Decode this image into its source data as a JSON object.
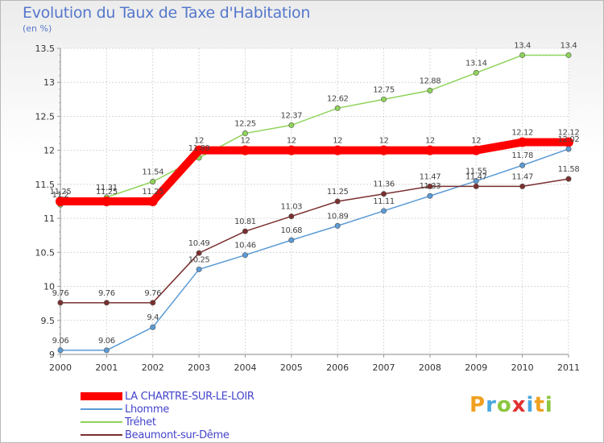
{
  "header": {
    "title": "Evolution du Taux de Taxe d'Habitation",
    "subtitle": "(en %)"
  },
  "brand": {
    "text": "Proxiti",
    "letters": [
      {
        "ch": "P",
        "color": "#f0a020"
      },
      {
        "ch": "r",
        "color": "#4aa8e0"
      },
      {
        "ch": "o",
        "color": "#8cc63f"
      },
      {
        "ch": "x",
        "color": "#e03030"
      },
      {
        "ch": "i",
        "color": "#4aa8e0"
      },
      {
        "ch": "t",
        "color": "#f0a020"
      },
      {
        "ch": "i",
        "color": "#8cc63f"
      }
    ]
  },
  "chart_data": {
    "type": "line",
    "title": "Evolution du Taux de Taxe d'Habitation",
    "subtitle": "(en %)",
    "x": [
      "2000",
      "2001",
      "2002",
      "2003",
      "2004",
      "2005",
      "2006",
      "2007",
      "2008",
      "2009",
      "2010",
      "2011"
    ],
    "ylim": [
      9,
      13.5
    ],
    "yticks": [
      "9",
      "9.5",
      "10",
      "10.5",
      "11",
      "11.5",
      "12",
      "12.5",
      "13",
      "13.5"
    ],
    "grid": "horizontal",
    "legend_position": "bottom-left",
    "series": [
      {
        "name": "LA CHARTRE-SUR-LE-LOIR",
        "color": "#ff0000",
        "values": [
          11.25,
          11.25,
          11.25,
          12,
          12,
          12,
          12,
          12,
          12,
          12,
          12.12,
          12.12
        ],
        "labels": [
          "11.25",
          "11.25",
          "11.25",
          "12",
          "12",
          "12",
          "12",
          "12",
          "12",
          "12",
          "12.12",
          "12.12"
        ]
      },
      {
        "name": "Lhomme",
        "color": "#5b9bd5",
        "values": [
          9.06,
          9.06,
          9.4,
          10.25,
          10.46,
          10.68,
          10.89,
          11.11,
          11.33,
          11.55,
          11.78,
          12.02
        ],
        "labels": [
          "9.06",
          "9.06",
          "9.4",
          "10.25",
          "10.46",
          "10.68",
          "10.89",
          "11.11",
          "11.33",
          "11.55",
          "11.78",
          "12.02"
        ]
      },
      {
        "name": "Tréhet",
        "color": "#8fd35a",
        "values": [
          11.2,
          11.31,
          11.54,
          11.89,
          12.25,
          12.37,
          12.62,
          12.75,
          12.88,
          13.14,
          13.4,
          13.4
        ],
        "labels": [
          "11.2",
          "11.31",
          "11.54",
          "11.89",
          "12.25",
          "12.37",
          "12.62",
          "12.75",
          "12.88",
          "13.14",
          "13.4",
          "13.4"
        ]
      },
      {
        "name": "Beaumont-sur-Dême",
        "color": "#7a2f2f",
        "values": [
          9.76,
          9.76,
          9.76,
          10.49,
          10.81,
          11.03,
          11.25,
          11.36,
          11.47,
          11.47,
          11.47,
          11.58
        ],
        "labels": [
          "9.76",
          "9.76",
          "9.76",
          "10.49",
          "10.81",
          "11.03",
          "11.25",
          "11.36",
          "11.47",
          "11.47",
          "11.47",
          "11.58"
        ]
      }
    ]
  }
}
